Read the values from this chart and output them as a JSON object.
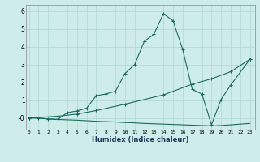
{
  "line1_x": [
    0,
    1,
    2,
    3,
    4,
    5,
    6,
    7,
    8,
    9,
    10,
    11,
    12,
    13,
    14,
    15,
    16,
    17,
    18,
    19,
    20,
    21,
    23
  ],
  "line1_y": [
    0.0,
    0.0,
    -0.05,
    -0.08,
    0.3,
    0.4,
    0.55,
    1.25,
    1.35,
    1.5,
    2.5,
    3.0,
    4.3,
    4.7,
    5.85,
    5.45,
    3.85,
    1.6,
    1.35,
    -0.38,
    1.05,
    1.85,
    3.3
  ],
  "line2_x": [
    0,
    3,
    5,
    7,
    10,
    14,
    17,
    19,
    21,
    23
  ],
  "line2_y": [
    0.0,
    0.1,
    0.22,
    0.42,
    0.78,
    1.3,
    1.9,
    2.2,
    2.6,
    3.3
  ],
  "line3_x": [
    0,
    1,
    2,
    3,
    4,
    5,
    6,
    7,
    8,
    9,
    10,
    11,
    12,
    13,
    14,
    15,
    16,
    17,
    18,
    19,
    20,
    21,
    22,
    23
  ],
  "line3_y": [
    0.0,
    0.0,
    -0.05,
    -0.08,
    -0.1,
    -0.12,
    -0.15,
    -0.18,
    -0.2,
    -0.22,
    -0.25,
    -0.27,
    -0.3,
    -0.32,
    -0.34,
    -0.36,
    -0.38,
    -0.4,
    -0.42,
    -0.44,
    -0.42,
    -0.38,
    -0.34,
    -0.3
  ],
  "line_color": "#1a6b5e",
  "bg_color": "#ceecea",
  "grid_color": "#afd6d2",
  "xlabel": "Humidex (Indice chaleur)",
  "ytick_labels": [
    "-0",
    "1",
    "2",
    "3",
    "4",
    "5",
    "6"
  ],
  "ytick_vals": [
    0,
    1,
    2,
    3,
    4,
    5,
    6
  ],
  "xtick_vals": [
    0,
    1,
    2,
    3,
    4,
    5,
    6,
    7,
    8,
    9,
    10,
    11,
    12,
    13,
    14,
    15,
    16,
    17,
    18,
    19,
    20,
    21,
    22,
    23
  ],
  "xlim": [
    -0.3,
    23.5
  ],
  "ylim": [
    -0.65,
    6.35
  ]
}
